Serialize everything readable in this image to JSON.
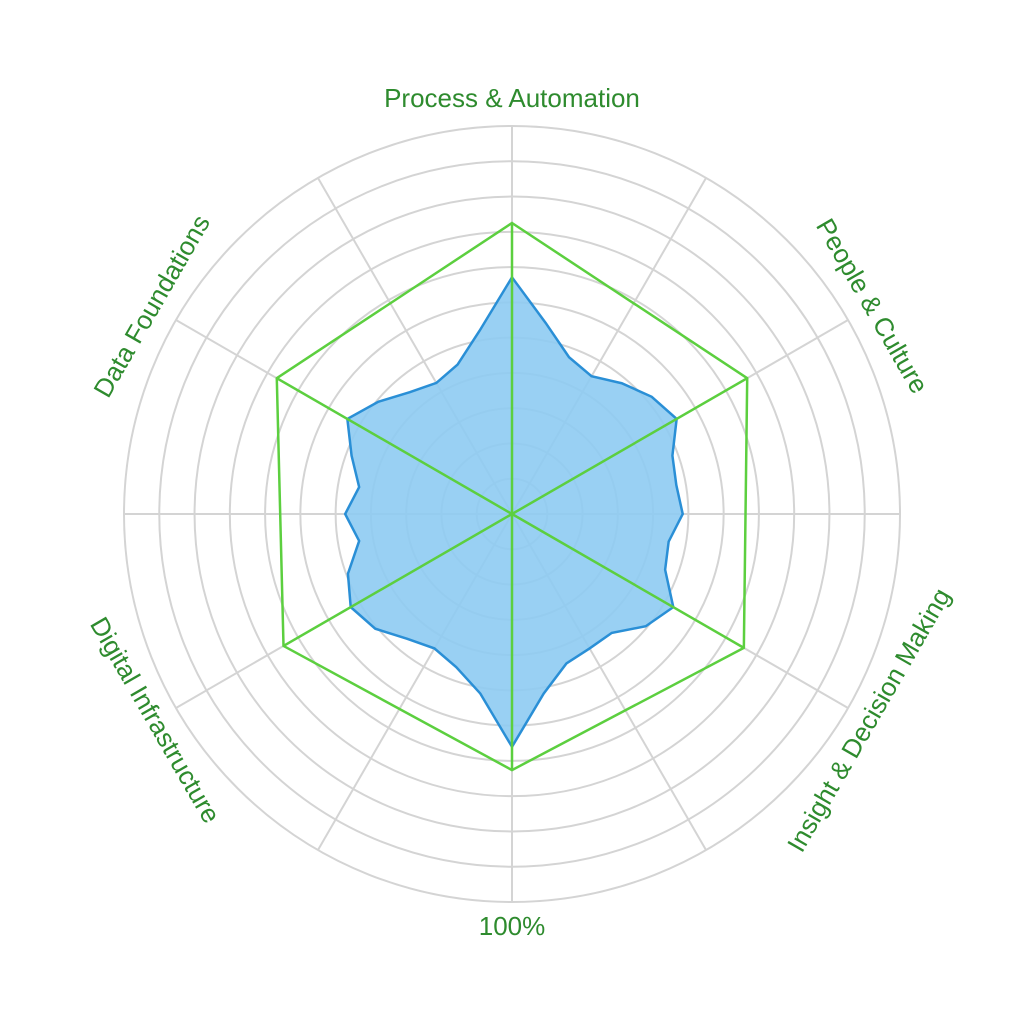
{
  "chart_data": {
    "type": "radar",
    "title": "",
    "axes": [
      "Process & Automation",
      "People & Culture",
      "Insight & Decision Making",
      "100%",
      "Digital Infrastructure",
      "Data Foundations"
    ],
    "scale": {
      "min": 0,
      "max": 100,
      "rings": 11
    },
    "grid": true,
    "legend": "none",
    "series": [
      {
        "name": "",
        "style": "filled",
        "fill": "#8ecbf2",
        "stroke": "#2a8fd6",
        "points": [
          {
            "angle": 0,
            "value": 61
          },
          {
            "angle": 10,
            "value": 50
          },
          {
            "angle": 20,
            "value": 43
          },
          {
            "angle": 30,
            "value": 41
          },
          {
            "angle": 40,
            "value": 44
          },
          {
            "angle": 50,
            "value": 47
          },
          {
            "angle": 60,
            "value": 49
          },
          {
            "angle": 70,
            "value": 44
          },
          {
            "angle": 80,
            "value": 43
          },
          {
            "angle": 90,
            "value": 44
          },
          {
            "angle": 100,
            "value": 41
          },
          {
            "angle": 110,
            "value": 42
          },
          {
            "angle": 120,
            "value": 48
          },
          {
            "angle": 130,
            "value": 45
          },
          {
            "angle": 140,
            "value": 40
          },
          {
            "angle": 150,
            "value": 40
          },
          {
            "angle": 160,
            "value": 41
          },
          {
            "angle": 170,
            "value": 47
          },
          {
            "angle": 180,
            "value": 60
          },
          {
            "angle": 190,
            "value": 47
          },
          {
            "angle": 200,
            "value": 42
          },
          {
            "angle": 210,
            "value": 40
          },
          {
            "angle": 220,
            "value": 42
          },
          {
            "angle": 230,
            "value": 46
          },
          {
            "angle": 240,
            "value": 48
          },
          {
            "angle": 250,
            "value": 45
          },
          {
            "angle": 260,
            "value": 40
          },
          {
            "angle": 270,
            "value": 43
          },
          {
            "angle": 280,
            "value": 40
          },
          {
            "angle": 290,
            "value": 44
          },
          {
            "angle": 300,
            "value": 49
          },
          {
            "angle": 310,
            "value": 45
          },
          {
            "angle": 320,
            "value": 41
          },
          {
            "angle": 330,
            "value": 39
          },
          {
            "angle": 340,
            "value": 41
          },
          {
            "angle": 350,
            "value": 48
          }
        ]
      },
      {
        "name": "",
        "style": "outline",
        "stroke": "#5ccf3f",
        "values": [
          75,
          70,
          69,
          66,
          68,
          70
        ]
      }
    ],
    "colors": {
      "grid": "#d4d4d4",
      "label": "#2e8b2e",
      "spokes": "#5ccf3f"
    }
  }
}
